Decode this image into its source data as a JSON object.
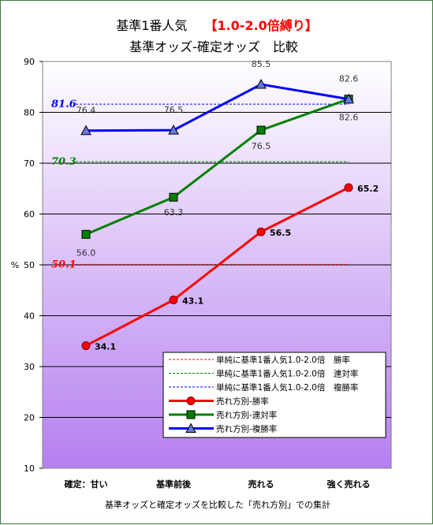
{
  "chart_data": {
    "type": "line",
    "title_main": "基準1番人気",
    "title_highlight": "【1.0-2.0倍縛り】",
    "subtitle": "基準オッズ-確定オッズ　比較",
    "ylabel": "%",
    "xlabel": "基準オッズと確定オッズを比較した「売れ方別」での集計",
    "categories": [
      "確定：甘い",
      "基準前後",
      "売れる",
      "強く売れる"
    ],
    "ylim": [
      10,
      90
    ],
    "yticks": [
      10,
      20,
      30,
      40,
      50,
      60,
      70,
      80,
      90
    ],
    "grid": true,
    "legend_position": "bottom-right",
    "series": [
      {
        "name": "売れ方別-勝率",
        "values": [
          34.1,
          43.1,
          56.5,
          65.2
        ],
        "color": "#ff0000",
        "marker": "circle",
        "labels": [
          "34.1",
          "43.1",
          "56.5",
          "65.2"
        ]
      },
      {
        "name": "売れ方別-連対率",
        "values": [
          56.0,
          63.3,
          76.5,
          82.6
        ],
        "color": "#008000",
        "marker": "square",
        "labels": [
          "56.0",
          "63.3",
          "76.5",
          "82.6"
        ]
      },
      {
        "name": "売れ方別-複勝率",
        "values": [
          76.4,
          76.5,
          85.5,
          82.6
        ],
        "color": "#0000ff",
        "marker": "triangle",
        "labels": [
          "76.4",
          "76.5",
          "85.5",
          "82.6"
        ]
      }
    ],
    "reference_lines": [
      {
        "name": "単純に基準1番人気1.0-2.0倍　勝率",
        "value": 50.1,
        "label": "50.1",
        "color": "#ff0000"
      },
      {
        "name": "単純に基準1番人気1.0-2.0倍　連対率",
        "value": 70.3,
        "label": "70.3",
        "color": "#008000"
      },
      {
        "name": "単純に基準1番人気1.0-2.0倍　複勝率",
        "value": 81.6,
        "label": "81.6",
        "color": "#0000ff"
      }
    ],
    "colors": {
      "bg_top": "#ffffff",
      "bg_bottom": "#b57ff0",
      "highlight": "#ff0000"
    }
  }
}
